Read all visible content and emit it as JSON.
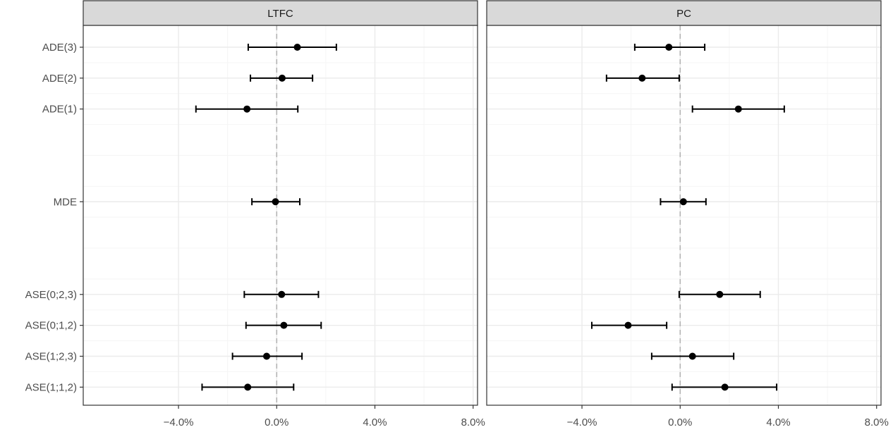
{
  "chart_data": {
    "type": "forest",
    "x_tick_labels": [
      "-4.0%",
      "0.0%",
      "4.0%",
      "8.0%"
    ],
    "x_ticks": [
      -0.04,
      0.0,
      0.04,
      0.08
    ],
    "xlim": [
      -0.0788,
      0.0818
    ],
    "reference_line": 0.0,
    "y_categories": [
      "ADE(3)",
      "ADE(2)",
      "ADE(1)",
      "MDE",
      "ASE(0;2,3)",
      "ASE(0;1,2)",
      "ASE(1;2,3)",
      "ASE(1;1,2)"
    ],
    "grid": true,
    "panels": [
      {
        "title": "LTFC",
        "points": [
          {
            "label": "ADE(3)",
            "estimate": 0.0084,
            "lower": -0.0116,
            "upper": 0.0243
          },
          {
            "label": "ADE(2)",
            "estimate": 0.0022,
            "lower": -0.0107,
            "upper": 0.0146
          },
          {
            "label": "ADE(1)",
            "estimate": -0.0121,
            "lower": -0.0329,
            "upper": 0.0086
          },
          {
            "label": "MDE",
            "estimate": -0.0005,
            "lower": -0.0101,
            "upper": 0.0094
          },
          {
            "label": "ASE(0;2,3)",
            "estimate": 0.002,
            "lower": -0.0132,
            "upper": 0.017
          },
          {
            "label": "ASE(0;1,2)",
            "estimate": 0.0029,
            "lower": -0.0125,
            "upper": 0.0181
          },
          {
            "label": "ASE(1;2,3)",
            "estimate": -0.0041,
            "lower": -0.018,
            "upper": 0.0103
          },
          {
            "label": "ASE(1;1,2)",
            "estimate": -0.0118,
            "lower": -0.0304,
            "upper": 0.0069
          }
        ]
      },
      {
        "title": "PC",
        "points": [
          {
            "label": "ADE(3)",
            "estimate": -0.0046,
            "lower": -0.0185,
            "upper": 0.01
          },
          {
            "label": "ADE(2)",
            "estimate": -0.0155,
            "lower": -0.03,
            "upper": -0.0004
          },
          {
            "label": "ADE(1)",
            "estimate": 0.0237,
            "lower": 0.005,
            "upper": 0.0424
          },
          {
            "label": "MDE",
            "estimate": 0.0013,
            "lower": -0.008,
            "upper": 0.0105
          },
          {
            "label": "ASE(0;2,3)",
            "estimate": 0.0161,
            "lower": -0.0004,
            "upper": 0.0326
          },
          {
            "label": "ASE(0;1,2)",
            "estimate": -0.0212,
            "lower": -0.036,
            "upper": -0.0055
          },
          {
            "label": "ASE(1;2,3)",
            "estimate": 0.005,
            "lower": -0.0116,
            "upper": 0.0218
          },
          {
            "label": "ASE(1;1,2)",
            "estimate": 0.0182,
            "lower": -0.0033,
            "upper": 0.0393
          }
        ]
      }
    ]
  },
  "colors": {
    "panel_border": "#333333",
    "strip_fill": "#d9d9d9",
    "grid_major": "#ebebeb",
    "grid_minor": "#f5f5f5",
    "point": "#000000",
    "reference_line": "#b3b3b3",
    "text": "#4d4d4d",
    "strip_text": "#1a1a1a"
  }
}
